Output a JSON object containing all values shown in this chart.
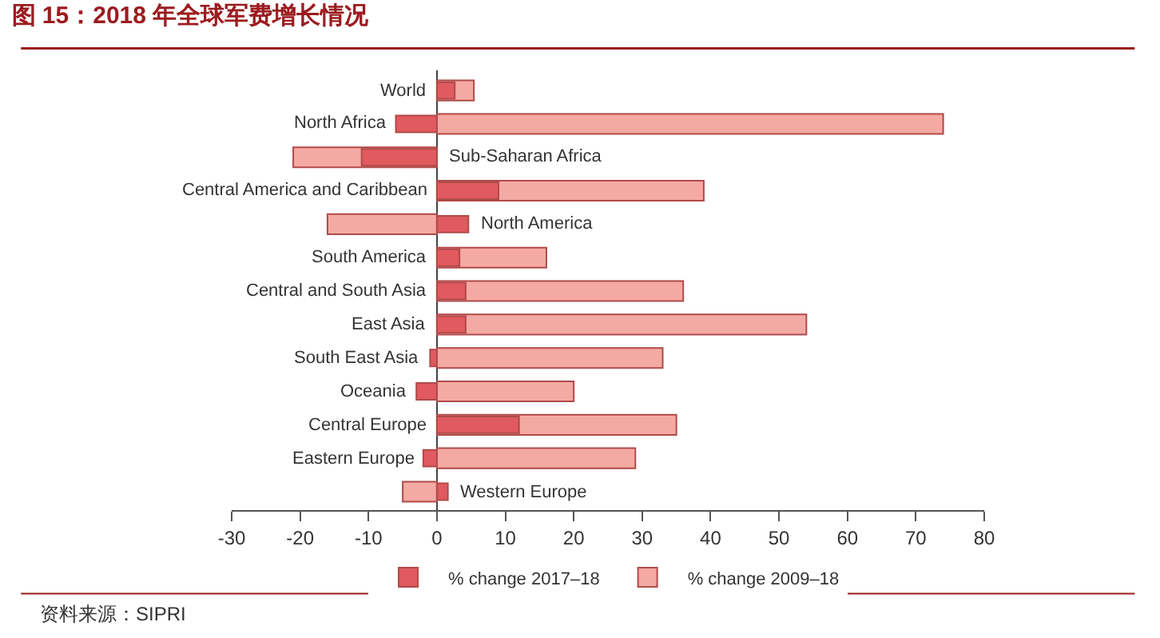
{
  "chart_data": {
    "type": "bar",
    "orientation": "horizontal",
    "title": "图 15：2018 年全球军费增长情况",
    "categories": [
      "World",
      "North Africa",
      "Sub-Saharan Africa",
      "Central America and Caribbean",
      "North America",
      "South America",
      "Central and South Asia",
      "East Asia",
      "South East Asia",
      "Oceania",
      "Central Europe",
      "Eastern Europe",
      "Western Europe"
    ],
    "series": [
      {
        "name": "% change 2017–18",
        "color": "#e05a5f",
        "values": [
          2.6,
          -6,
          -11,
          9,
          4.6,
          3.3,
          4.2,
          4.2,
          -1,
          -3,
          12,
          -2,
          1.6
        ]
      },
      {
        "name": "% change 2009–18",
        "color": "#f4aaa2",
        "values": [
          5.4,
          74,
          -21,
          39,
          -16,
          16,
          36,
          54,
          33,
          20,
          35,
          29,
          -5
        ]
      }
    ],
    "xlim": [
      -30,
      80
    ],
    "xticks": [
      -30,
      -20,
      -10,
      0,
      10,
      20,
      30,
      40,
      50,
      60,
      70,
      80
    ],
    "legend": "bottom",
    "annotations": [
      "资料来源：SIPRI"
    ]
  }
}
